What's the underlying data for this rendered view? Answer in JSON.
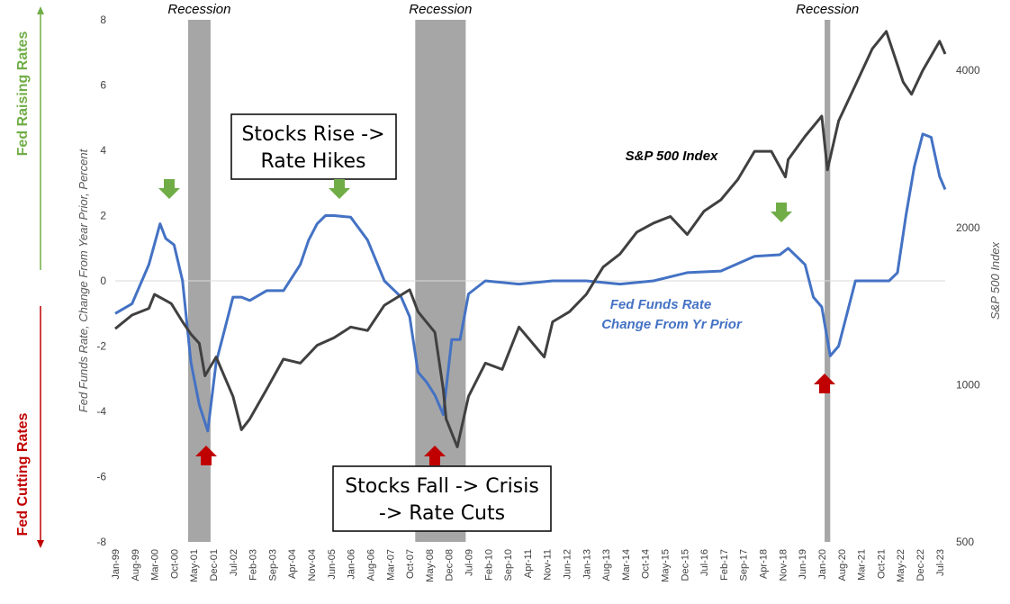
{
  "chart_data": {
    "type": "line",
    "title": "",
    "ylabel": "Fed Funds Rate, Change From Year Prior, Percent",
    "y2label": "S&P 500 Index",
    "ylim": [
      -8,
      8
    ],
    "y2lim": [
      500,
      5000
    ],
    "y2_scale": "log",
    "y_ticks": [
      "8",
      "6",
      "4",
      "2",
      "0",
      "-2",
      "-4",
      "-6",
      "-8"
    ],
    "y2_ticks": [
      "4000",
      "2000",
      "1000",
      "500"
    ],
    "x_ticks": [
      "Jan-99",
      "Aug-99",
      "Mar-00",
      "Oct-00",
      "May-01",
      "Dec-01",
      "Jul-02",
      "Feb-03",
      "Sep-03",
      "Apr-04",
      "Nov-04",
      "Jun-05",
      "Jan-06",
      "Aug-06",
      "Mar-07",
      "Oct-07",
      "May-08",
      "Dec-08",
      "Jul-09",
      "Feb-10",
      "Sep-10",
      "Apr-11",
      "Nov-11",
      "Jun-12",
      "Jan-13",
      "Aug-13",
      "Mar-14",
      "Oct-14",
      "May-15",
      "Dec-15",
      "Jul-16",
      "Feb-17",
      "Sep-17",
      "Apr-18",
      "Nov-18",
      "Jun-19",
      "Jan-20",
      "Aug-20",
      "Mar-21",
      "Oct-21",
      "May-22",
      "Dec-22",
      "Jul-23"
    ],
    "recessions": [
      {
        "label": "Recession",
        "start": "Mar-01",
        "end": "Nov-01"
      },
      {
        "label": "Recession",
        "start": "Dec-07",
        "end": "Jun-09"
      },
      {
        "label": "Recession",
        "start": "Feb-20",
        "end": "Apr-20"
      }
    ],
    "series": [
      {
        "name": "Fed Funds Rate Change From Yr Prior",
        "axis": "left",
        "color": "#4472C4",
        "x": [
          "Jan-99",
          "Jul-99",
          "Jan-00",
          "May-00",
          "Jul-00",
          "Oct-00",
          "Jan-01",
          "Apr-01",
          "Jul-01",
          "Oct-01",
          "Jan-02",
          "Apr-02",
          "Jul-02",
          "Oct-02",
          "Jan-03",
          "Jul-03",
          "Jan-04",
          "Jul-04",
          "Oct-04",
          "Jan-05",
          "Apr-05",
          "Jul-05",
          "Jan-06",
          "Jul-06",
          "Jan-07",
          "Jul-07",
          "Oct-07",
          "Jan-08",
          "Apr-08",
          "Jul-08",
          "Oct-08",
          "Jan-09",
          "Apr-09",
          "Jul-09",
          "Jan-10",
          "Jan-11",
          "Jan-12",
          "Jan-13",
          "Jan-14",
          "Jan-15",
          "Jan-16",
          "Jan-17",
          "Jan-18",
          "Oct-18",
          "Jan-19",
          "Jul-19",
          "Oct-19",
          "Jan-20",
          "Apr-20",
          "Jul-20",
          "Oct-20",
          "Jan-21",
          "Jul-21",
          "Jan-22",
          "Apr-22",
          "Jul-22",
          "Oct-22",
          "Jan-23",
          "Apr-23",
          "Jul-23",
          "Sep-23"
        ],
        "values": [
          -1.0,
          -0.7,
          0.5,
          1.75,
          1.3,
          1.1,
          0.0,
          -2.5,
          -3.8,
          -4.6,
          -2.5,
          -1.5,
          -0.5,
          -0.5,
          -0.6,
          -0.3,
          -0.3,
          0.5,
          1.25,
          1.75,
          2.0,
          2.0,
          1.95,
          1.25,
          0.0,
          -0.5,
          -1.1,
          -2.8,
          -3.1,
          -3.5,
          -4.1,
          -1.8,
          -1.8,
          -0.4,
          0.0,
          -0.1,
          0.0,
          0.0,
          -0.1,
          0.0,
          0.25,
          0.3,
          0.75,
          0.8,
          1.0,
          0.5,
          -0.5,
          -0.8,
          -2.3,
          -2.0,
          -1.0,
          0.0,
          0.0,
          0.0,
          0.25,
          2.0,
          3.5,
          4.5,
          4.4,
          3.2,
          2.8
        ]
      },
      {
        "name": "S&P 500 Index",
        "axis": "right",
        "color": "#404040",
        "x": [
          "Jan-99",
          "Jul-99",
          "Jan-00",
          "Mar-00",
          "Jul-00",
          "Sep-00",
          "Jan-01",
          "Apr-01",
          "Jul-01",
          "Sep-01",
          "Jan-02",
          "Jul-02",
          "Oct-02",
          "Jan-03",
          "Jul-03",
          "Jan-04",
          "Jul-04",
          "Jan-05",
          "Jul-05",
          "Jan-06",
          "Jul-06",
          "Jan-07",
          "Oct-07",
          "Jan-08",
          "Jul-08",
          "Oct-08",
          "Nov-08",
          "Mar-09",
          "Jul-09",
          "Jan-10",
          "Jul-10",
          "Jan-11",
          "Oct-11",
          "Jan-12",
          "Jul-12",
          "Jan-13",
          "Jul-13",
          "Jan-14",
          "Jul-14",
          "Jan-15",
          "Jul-15",
          "Jan-16",
          "Jul-16",
          "Jan-17",
          "Jul-17",
          "Jan-18",
          "Jul-18",
          "Dec-18",
          "Jan-19",
          "Jul-19",
          "Jan-20",
          "Mar-20",
          "Jul-20",
          "Jan-21",
          "Jul-21",
          "Dec-21",
          "Jun-22",
          "Sep-22",
          "Jan-23",
          "Jul-23",
          "Sep-23"
        ],
        "values": [
          1280,
          1360,
          1400,
          1490,
          1450,
          1430,
          1320,
          1250,
          1200,
          1040,
          1130,
          950,
          820,
          860,
          980,
          1120,
          1100,
          1190,
          1230,
          1290,
          1270,
          1420,
          1520,
          1380,
          1260,
          980,
          860,
          760,
          950,
          1100,
          1070,
          1290,
          1130,
          1320,
          1380,
          1490,
          1680,
          1780,
          1960,
          2040,
          2100,
          1940,
          2150,
          2260,
          2470,
          2800,
          2800,
          2500,
          2700,
          2990,
          3270,
          2580,
          3200,
          3750,
          4400,
          4750,
          3800,
          3600,
          4000,
          4550,
          4300
        ]
      }
    ]
  },
  "annotations": {
    "recession_label": "Recession",
    "callout_rise_line1": "Stocks Rise ->",
    "callout_rise_line2": "Rate Hikes",
    "callout_fall_line1": "Stocks Fall -> Crisis",
    "callout_fall_line2": "-> Rate Cuts",
    "sp500_label": "S&P 500 Index",
    "fed_label_line1": "Fed Funds Rate",
    "fed_label_line2": "Change From Yr Prior",
    "fed_raising": "Fed Raising Rates",
    "fed_cutting": "Fed Cutting Rates"
  },
  "colors": {
    "fed_line": "#4472C4",
    "sp_line": "#404040",
    "recession": "#A6A6A6",
    "raise_green": "#70AD47",
    "cut_red": "#C00000"
  }
}
